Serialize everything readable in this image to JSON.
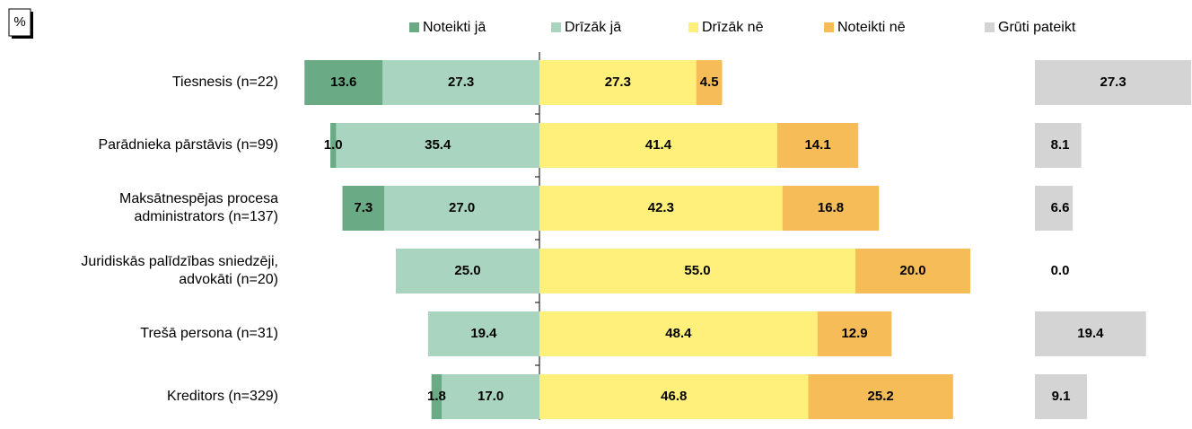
{
  "chart_data": {
    "type": "diverging_bar",
    "unit_label": "%",
    "categories": [
      "Tiesnesis (n=22)",
      "Parādnieka pārstāvis (n=99)",
      "Maksātnespējas procesa\nadministrators (n=137)",
      "Juridiskās palīdzības sniedzēji,\nadvokāti (n=20)",
      "Trešā persona (n=31)",
      "Kreditors (n=329)"
    ],
    "series": [
      {
        "name": "Noteikti jā",
        "color": "#6aab86",
        "values": [
          13.6,
          1.0,
          7.3,
          null,
          null,
          1.8
        ],
        "value_labels": [
          "13.6",
          "1.0",
          "7.3",
          null,
          null,
          "1.8"
        ]
      },
      {
        "name": "Drīzāk jā",
        "color": "#a9d5c0",
        "values": [
          27.3,
          35.4,
          27.0,
          25.0,
          19.4,
          17.0
        ],
        "value_labels": [
          "27.3",
          "35.4",
          "27.0",
          "25.0",
          "19.4",
          "17.0"
        ]
      },
      {
        "name": "Drīzāk nē",
        "color": "#fff07c",
        "values": [
          27.3,
          41.4,
          42.3,
          55.0,
          48.4,
          46.8
        ],
        "value_labels": [
          "27.3",
          "41.4",
          "42.3",
          "55.0",
          "48.4",
          "46.8"
        ]
      },
      {
        "name": "Noteikti nē",
        "color": "#f6bc57",
        "values": [
          4.5,
          14.1,
          16.8,
          20.0,
          12.9,
          25.2
        ],
        "value_labels": [
          "4.5",
          "14.1",
          "16.8",
          "20.0",
          "12.9",
          "25.2"
        ]
      },
      {
        "name": "Grūti pateikt",
        "color": "#d4d4d4",
        "values": [
          27.3,
          8.1,
          6.6,
          0.0,
          19.4,
          9.1
        ],
        "value_labels": [
          "27.3",
          "8.1",
          "6.6",
          "0.0",
          "19.4",
          "9.1"
        ]
      }
    ],
    "legend": "top"
  }
}
